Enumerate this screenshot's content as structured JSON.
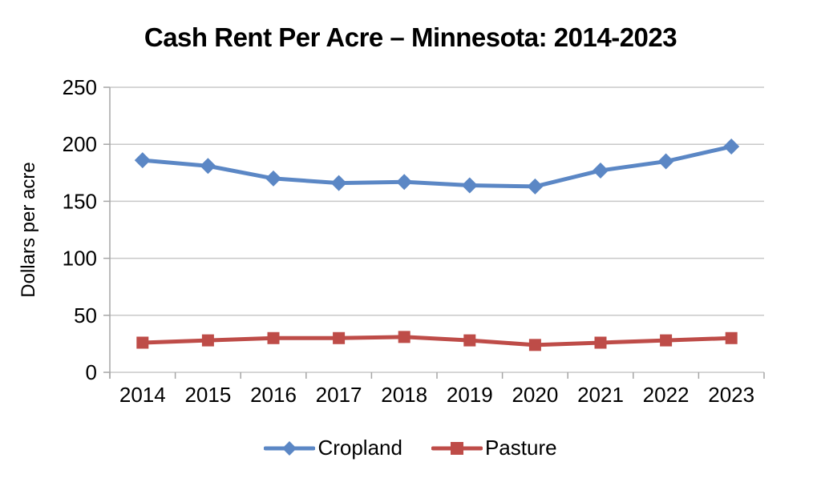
{
  "chart_data": {
    "type": "line",
    "title": "Cash Rent Per Acre – Minnesota: 2014-2023",
    "xlabel": "",
    "ylabel": "Dollars per acre",
    "categories": [
      "2014",
      "2015",
      "2016",
      "2017",
      "2018",
      "2019",
      "2020",
      "2021",
      "2022",
      "2023"
    ],
    "series": [
      {
        "name": "Cropland",
        "marker": "diamond",
        "color": "#5B87C5",
        "values": [
          186,
          181,
          170,
          166,
          167,
          164,
          163,
          177,
          185,
          198
        ]
      },
      {
        "name": "Pasture",
        "marker": "square",
        "color": "#BE4C48",
        "values": [
          26,
          28,
          30,
          30,
          31,
          28,
          24,
          26,
          28,
          30
        ]
      }
    ],
    "ylim": [
      0,
      250
    ],
    "yticks": [
      0,
      50,
      100,
      150,
      200,
      250
    ],
    "grid": true,
    "legend_position": "bottom"
  },
  "style_colors": {
    "gridline": "#C8C8C8",
    "axis": "#A6A6A6",
    "text": "#000000",
    "background": "#FFFFFF"
  }
}
